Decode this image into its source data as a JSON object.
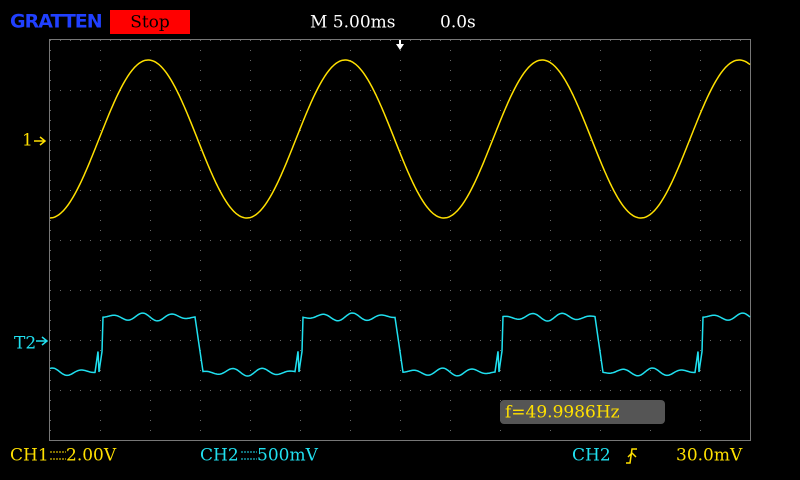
{
  "header": {
    "brand": "GRATTEN",
    "status": "Stop",
    "timebase": "M 5.00ms",
    "trigger_position": "0.0s"
  },
  "markers": {
    "ch1": "1",
    "ch2": "T2"
  },
  "measurement": "f=49.9986Hz",
  "footer": {
    "ch1_label": "CH1",
    "ch1_scale": "2.00V",
    "ch2_label": "CH2",
    "ch2_scale": "500mV",
    "trigger_source": "CH2",
    "trigger_level": "30.0mV"
  }
}
